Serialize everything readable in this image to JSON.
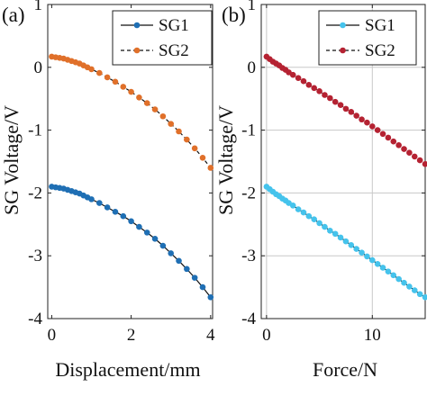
{
  "chart_data": [
    {
      "type": "line",
      "panel_label": "(a)",
      "xlabel": "Displacement/mm",
      "ylabel": "SG Voltage/V",
      "xlim": [
        -0.1,
        4.05
      ],
      "ylim": [
        -4,
        1
      ],
      "xticks": [
        "0",
        "2",
        "4"
      ],
      "yticks": [
        "1",
        "0",
        "-1",
        "-2",
        "-3",
        "-4"
      ],
      "grid": false,
      "legend": {
        "position": "top-right",
        "entries": [
          "SG1",
          "SG2"
        ]
      },
      "series": [
        {
          "name": "SG1",
          "color": "#1f6fb4",
          "line_style": "solid",
          "x": [
            0.0,
            0.1,
            0.2,
            0.3,
            0.4,
            0.5,
            0.6,
            0.7,
            0.8,
            0.9,
            1.0,
            1.2,
            1.4,
            1.6,
            1.8,
            2.0,
            2.2,
            2.4,
            2.6,
            2.8,
            3.0,
            3.2,
            3.4,
            3.6,
            3.8,
            4.0
          ],
          "y": [
            -1.9,
            -1.91,
            -1.92,
            -1.93,
            -1.95,
            -1.97,
            -1.99,
            -2.01,
            -2.04,
            -2.07,
            -2.1,
            -2.16,
            -2.23,
            -2.3,
            -2.37,
            -2.45,
            -2.54,
            -2.63,
            -2.73,
            -2.84,
            -2.96,
            -3.08,
            -3.21,
            -3.35,
            -3.5,
            -3.66
          ]
        },
        {
          "name": "SG2",
          "color": "#e0702a",
          "line_style": "dashed",
          "x": [
            0.0,
            0.1,
            0.2,
            0.3,
            0.4,
            0.5,
            0.6,
            0.7,
            0.8,
            0.9,
            1.0,
            1.2,
            1.4,
            1.6,
            1.8,
            2.0,
            2.2,
            2.4,
            2.6,
            2.8,
            3.0,
            3.2,
            3.4,
            3.6,
            3.8,
            4.0
          ],
          "y": [
            0.17,
            0.16,
            0.15,
            0.14,
            0.12,
            0.1,
            0.08,
            0.06,
            0.03,
            0.0,
            -0.03,
            -0.09,
            -0.16,
            -0.23,
            -0.31,
            -0.39,
            -0.48,
            -0.57,
            -0.67,
            -0.78,
            -0.9,
            -1.02,
            -1.15,
            -1.29,
            -1.44,
            -1.6
          ]
        }
      ]
    },
    {
      "type": "line",
      "panel_label": "(b)",
      "xlabel": "Force/N",
      "ylabel": "",
      "xlim": [
        -0.5,
        15
      ],
      "ylim": [
        -4,
        1
      ],
      "xticks": [
        "0",
        "10"
      ],
      "yticks": [
        "1",
        "0",
        "-1",
        "-2",
        "-3",
        "-4"
      ],
      "grid": true,
      "legend": {
        "position": "top-right",
        "entries": [
          "SG1",
          "SG2"
        ]
      },
      "series": [
        {
          "name": "SG1",
          "color": "#45c3ec",
          "line_style": "solid",
          "x": [
            0.0,
            0.3,
            0.6,
            0.9,
            1.2,
            1.5,
            1.8,
            2.1,
            2.5,
            3.0,
            3.5,
            4.0,
            4.5,
            5.0,
            5.5,
            6.0,
            6.5,
            7.0,
            7.5,
            8.0,
            8.5,
            9.0,
            9.5,
            10.0,
            10.5,
            11.0,
            11.5,
            12.0,
            12.5,
            13.0,
            13.5,
            14.0,
            14.5,
            15.0
          ],
          "y": [
            -1.9,
            -1.94,
            -1.98,
            -2.02,
            -2.05,
            -2.09,
            -2.12,
            -2.16,
            -2.2,
            -2.26,
            -2.31,
            -2.37,
            -2.42,
            -2.48,
            -2.54,
            -2.6,
            -2.65,
            -2.71,
            -2.77,
            -2.83,
            -2.89,
            -2.95,
            -3.01,
            -3.07,
            -3.13,
            -3.19,
            -3.25,
            -3.31,
            -3.37,
            -3.43,
            -3.49,
            -3.55,
            -3.61,
            -3.66
          ]
        },
        {
          "name": "SG2",
          "color": "#b52232",
          "line_style": "dashed",
          "x": [
            0.0,
            0.3,
            0.6,
            0.9,
            1.2,
            1.5,
            1.8,
            2.1,
            2.5,
            3.0,
            3.5,
            4.0,
            4.5,
            5.0,
            5.5,
            6.0,
            6.5,
            7.0,
            7.5,
            8.0,
            8.5,
            9.0,
            9.5,
            10.0,
            10.5,
            11.0,
            11.5,
            12.0,
            12.5,
            13.0,
            13.5,
            14.0,
            14.5,
            15.0
          ],
          "y": [
            0.17,
            0.13,
            0.09,
            0.06,
            0.03,
            -0.01,
            -0.04,
            -0.08,
            -0.12,
            -0.17,
            -0.22,
            -0.28,
            -0.33,
            -0.38,
            -0.44,
            -0.49,
            -0.55,
            -0.6,
            -0.66,
            -0.71,
            -0.77,
            -0.83,
            -0.88,
            -0.94,
            -1.0,
            -1.06,
            -1.12,
            -1.18,
            -1.24,
            -1.3,
            -1.36,
            -1.42,
            -1.48,
            -1.54
          ]
        }
      ]
    }
  ]
}
